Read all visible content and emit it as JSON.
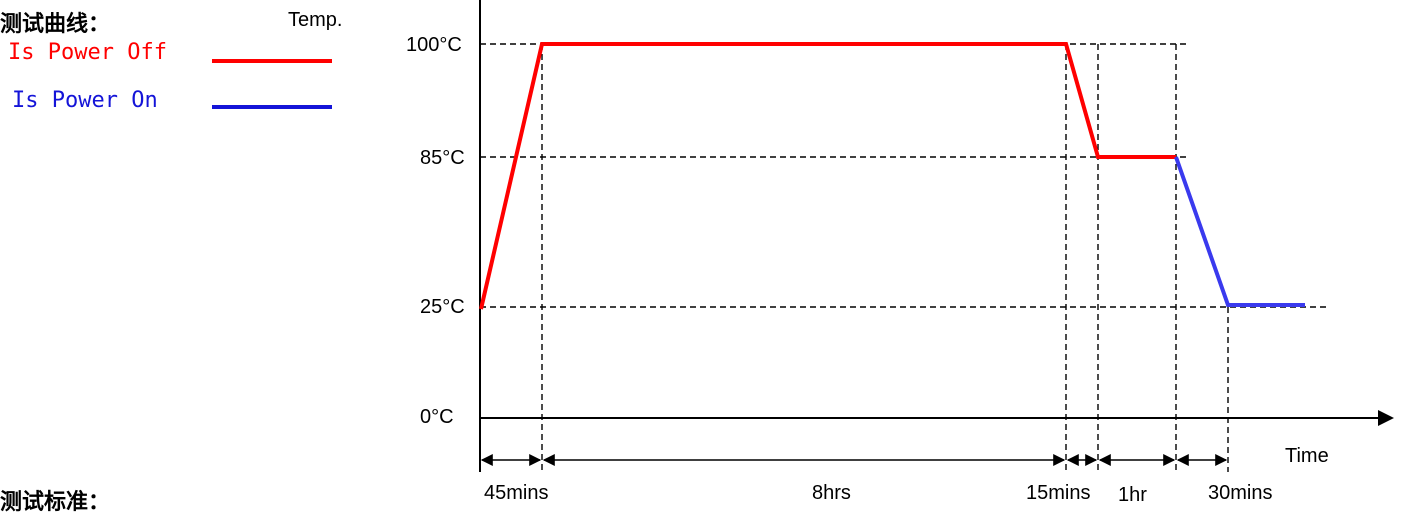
{
  "heading": "测试曲线：",
  "footer_heading": "测试标准：",
  "legend": {
    "power_off": {
      "label": "Is Power Off",
      "color": "#ff0000"
    },
    "power_on": {
      "label": "Is Power On",
      "color": "#1414d8"
    }
  },
  "axes": {
    "y_title": "Temp.",
    "x_title": "Time",
    "y_ticks": [
      "100°C",
      "85°C",
      "25°C",
      "0°C"
    ]
  },
  "phases": [
    {
      "label": "45mins"
    },
    {
      "label": "8hrs"
    },
    {
      "label": "15mins"
    },
    {
      "label": "1hr"
    },
    {
      "label": "30mins"
    }
  ],
  "profile": {
    "power_off": [
      {
        "time_min": 0,
        "temp_c": 25
      },
      {
        "time_min": 45,
        "temp_c": 100
      },
      {
        "time_min": 525,
        "temp_c": 100
      },
      {
        "time_min": 540,
        "temp_c": 85
      },
      {
        "time_min": 600,
        "temp_c": 85
      }
    ],
    "power_on": [
      {
        "time_min": 600,
        "temp_c": 85
      },
      {
        "time_min": 630,
        "temp_c": 25
      },
      {
        "time_min": 690,
        "temp_c": 25
      }
    ]
  }
}
